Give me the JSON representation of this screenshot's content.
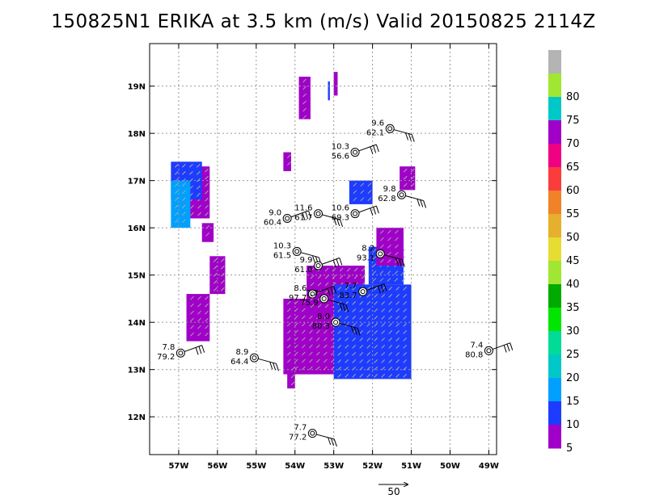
{
  "title": "150825N1 ERIKA at 3.5 km (m/s) Valid 20150825 2114Z",
  "chart_data": {
    "type": "heatmap",
    "title": "150825N1 ERIKA at 3.5 km (m/s) Valid 20150825 2114Z",
    "xlabel": "",
    "ylabel": "",
    "xlim": [
      -57.75,
      -48.8
    ],
    "ylim": [
      11.2,
      19.9
    ],
    "grid": true,
    "x_ticks": [
      {
        "value": -57,
        "label": "57W"
      },
      {
        "value": -56,
        "label": "56W"
      },
      {
        "value": -55,
        "label": "55W"
      },
      {
        "value": -54,
        "label": "54W"
      },
      {
        "value": -53,
        "label": "53W"
      },
      {
        "value": -52,
        "label": "52W"
      },
      {
        "value": -51,
        "label": "51W"
      },
      {
        "value": -50,
        "label": "50W"
      },
      {
        "value": -49,
        "label": "49W"
      }
    ],
    "y_ticks": [
      {
        "value": 12,
        "label": "12N"
      },
      {
        "value": 13,
        "label": "13N"
      },
      {
        "value": 14,
        "label": "14N"
      },
      {
        "value": 15,
        "label": "15N"
      },
      {
        "value": 16,
        "label": "16N"
      },
      {
        "value": 17,
        "label": "17N"
      },
      {
        "value": 18,
        "label": "18N"
      },
      {
        "value": 19,
        "label": "19N"
      }
    ],
    "colorbar": [
      {
        "label": "5",
        "color": "#a000c8"
      },
      {
        "label": "10",
        "color": "#1e3cff"
      },
      {
        "label": "15",
        "color": "#00a0ff"
      },
      {
        "label": "20",
        "color": "#00c8c8"
      },
      {
        "label": "25",
        "color": "#00dc96"
      },
      {
        "label": "30",
        "color": "#00e600"
      },
      {
        "label": "35",
        "color": "#00aa00"
      },
      {
        "label": "40",
        "color": "#a0e632"
      },
      {
        "label": "45",
        "color": "#e6dc32"
      },
      {
        "label": "50",
        "color": "#e6af2d"
      },
      {
        "label": "55",
        "color": "#f08228"
      },
      {
        "label": "60",
        "color": "#fa3c3c"
      },
      {
        "label": "65",
        "color": "#f00082"
      },
      {
        "label": "70",
        "color": "#a000c8"
      },
      {
        "label": "75",
        "color": "#00c8c8"
      },
      {
        "label": "80",
        "color": "#a0e632"
      },
      {
        "label": "",
        "color": "#b4b4b4"
      }
    ],
    "wind_regions": [
      {
        "level": 5,
        "lon": [
          -54.3,
          -52.9
        ],
        "lat": [
          12.9,
          14.5
        ]
      },
      {
        "level": 5,
        "lon": [
          -53.7,
          -52.2
        ],
        "lat": [
          14.2,
          15.2
        ]
      },
      {
        "level": 10,
        "lon": [
          -53.0,
          -51.0
        ],
        "lat": [
          12.8,
          14.8
        ]
      },
      {
        "level": 10,
        "lon": [
          -52.1,
          -51.2
        ],
        "lat": [
          14.8,
          15.6
        ]
      },
      {
        "level": 5,
        "lon": [
          -51.9,
          -51.2
        ],
        "lat": [
          15.2,
          16.0
        ]
      },
      {
        "level": 5,
        "lon": [
          -51.3,
          -50.9
        ],
        "lat": [
          16.8,
          17.3
        ]
      },
      {
        "level": 10,
        "lon": [
          -52.6,
          -52.0
        ],
        "lat": [
          16.5,
          17.0
        ]
      },
      {
        "level": 5,
        "lon": [
          -56.8,
          -56.2
        ],
        "lat": [
          16.2,
          17.3
        ]
      },
      {
        "level": 10,
        "lon": [
          -57.2,
          -56.4
        ],
        "lat": [
          16.6,
          17.4
        ]
      },
      {
        "level": 15,
        "lon": [
          -57.2,
          -56.7
        ],
        "lat": [
          16.0,
          17.0
        ]
      },
      {
        "level": 5,
        "lon": [
          -56.8,
          -56.2
        ],
        "lat": [
          13.6,
          14.6
        ]
      },
      {
        "level": 5,
        "lon": [
          -53.9,
          -53.6
        ],
        "lat": [
          18.3,
          19.2
        ]
      },
      {
        "level": 5,
        "lon": [
          -53.0,
          -52.9
        ],
        "lat": [
          18.8,
          19.3
        ]
      },
      {
        "level": 10,
        "lon": [
          -53.15,
          -53.1
        ],
        "lat": [
          18.7,
          19.1
        ]
      },
      {
        "level": 5,
        "lon": [
          -54.3,
          -54.1
        ],
        "lat": [
          17.2,
          17.6
        ]
      },
      {
        "level": 5,
        "lon": [
          -56.4,
          -56.1
        ],
        "lat": [
          15.7,
          16.1
        ]
      },
      {
        "level": 5,
        "lon": [
          -56.2,
          -55.8
        ],
        "lat": [
          14.6,
          15.4
        ]
      },
      {
        "level": 5,
        "lon": [
          -54.2,
          -54.0
        ],
        "lat": [
          12.6,
          13.1
        ]
      }
    ],
    "stations": [
      {
        "lon": -51.55,
        "lat": 18.1,
        "speed": "9.6",
        "pressure": "62.1"
      },
      {
        "lon": -52.45,
        "lat": 17.6,
        "speed": "10.3",
        "pressure": "56.6"
      },
      {
        "lon": -51.25,
        "lat": 16.7,
        "speed": "9.8",
        "pressure": "62.8"
      },
      {
        "lon": -54.2,
        "lat": 16.2,
        "speed": "9.0",
        "pressure": "60.4"
      },
      {
        "lon": -53.4,
        "lat": 16.3,
        "speed": "11.6",
        "pressure": "61.7"
      },
      {
        "lon": -52.45,
        "lat": 16.3,
        "speed": "10.6",
        "pressure": "69.3"
      },
      {
        "lon": -53.95,
        "lat": 15.5,
        "speed": "10.3",
        "pressure": "61.5"
      },
      {
        "lon": -53.4,
        "lat": 15.2,
        "speed": "9.9",
        "pressure": "61.0"
      },
      {
        "lon": -51.8,
        "lat": 15.45,
        "speed": "8.2",
        "pressure": "93.1"
      },
      {
        "lon": -53.55,
        "lat": 14.6,
        "speed": "8.6",
        "pressure": "97.7"
      },
      {
        "lon": -53.25,
        "lat": 14.5,
        "speed": "7.7",
        "pressure": "75.9"
      },
      {
        "lon": -52.25,
        "lat": 14.65,
        "speed": "7.7",
        "pressure": "83.7"
      },
      {
        "lon": -52.95,
        "lat": 14.0,
        "speed": "8.0",
        "pressure": "80.3"
      },
      {
        "lon": -56.95,
        "lat": 13.35,
        "speed": "7.8",
        "pressure": "79.2"
      },
      {
        "lon": -55.05,
        "lat": 13.25,
        "speed": "8.9",
        "pressure": "64.4"
      },
      {
        "lon": -49.0,
        "lat": 13.4,
        "speed": "7.4",
        "pressure": "80.8"
      },
      {
        "lon": -53.55,
        "lat": 11.65,
        "speed": "7.7",
        "pressure": "77.2"
      }
    ],
    "reference_vector": {
      "label": "50"
    }
  }
}
